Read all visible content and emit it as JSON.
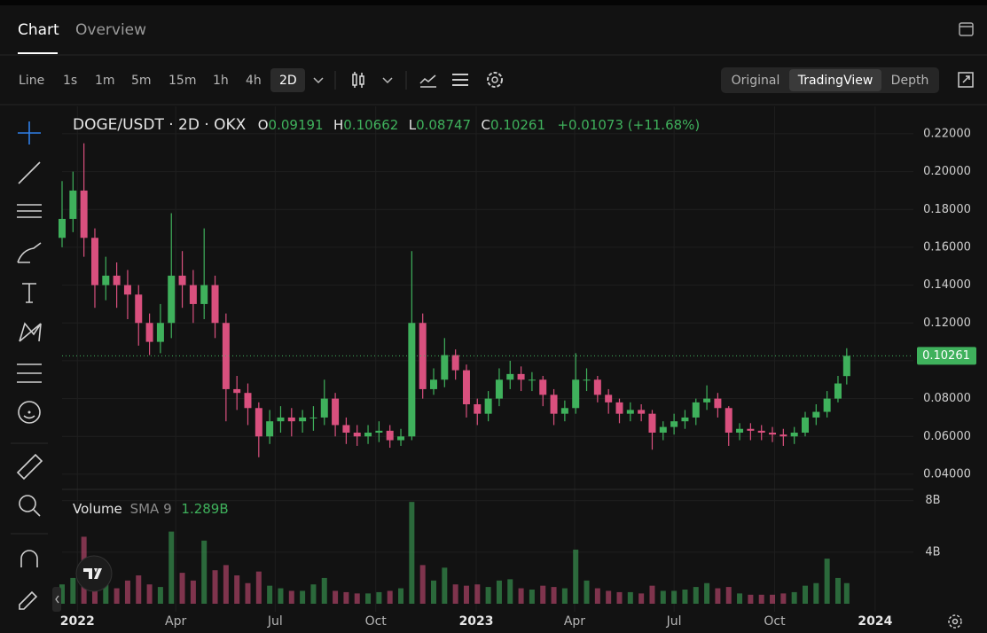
{
  "tabs": [
    "Chart",
    "Overview"
  ],
  "toolbar": {
    "intervals": [
      "Line",
      "1s",
      "1m",
      "5m",
      "15m",
      "1h",
      "4h",
      "2D"
    ],
    "views": [
      "Original",
      "TradingView",
      "Depth"
    ]
  },
  "chart_data": {
    "type": "candlestick",
    "title": "DOGE/USDT · 2D · OKX",
    "ohlc_labels": [
      "O",
      "H",
      "L",
      "C"
    ],
    "change": "+0.01073 (+11.68%)",
    "up_color": "#3fb15c",
    "down_color": "#d9507e",
    "grid": true,
    "x": [
      -14,
      -4,
      6,
      16,
      26,
      36,
      46,
      56,
      66,
      76,
      86,
      96,
      106,
      116,
      126,
      136,
      146,
      156,
      166,
      176,
      186,
      196,
      206,
      216,
      226,
      236,
      246,
      256,
      266,
      276,
      286,
      296,
      306,
      316,
      326,
      336,
      346,
      356,
      366,
      376,
      386,
      396,
      406,
      416,
      426,
      436,
      446,
      456,
      466,
      476,
      486,
      496,
      506,
      516,
      526,
      536,
      546,
      556,
      566,
      576,
      586,
      596,
      606,
      616,
      626,
      636,
      646,
      656,
      666,
      676,
      686,
      696,
      704
    ],
    "open": [
      0.165,
      0.175,
      0.19,
      0.165,
      0.14,
      0.145,
      0.14,
      0.135,
      0.12,
      0.11,
      0.12,
      0.145,
      0.14,
      0.13,
      0.14,
      0.12,
      0.085,
      0.083,
      0.075,
      0.06,
      0.068,
      0.07,
      0.068,
      0.07,
      0.07,
      0.08,
      0.066,
      0.062,
      0.06,
      0.062,
      0.063,
      0.058,
      0.06,
      0.12,
      0.085,
      0.09,
      0.103,
      0.095,
      0.077,
      0.072,
      0.08,
      0.09,
      0.093,
      0.09,
      0.09,
      0.082,
      0.072,
      0.075,
      0.09,
      0.09,
      0.082,
      0.078,
      0.072,
      0.074,
      0.072,
      0.062,
      0.065,
      0.068,
      0.07,
      0.078,
      0.08,
      0.075,
      0.062,
      0.064,
      0.063,
      0.062,
      0.061,
      0.06,
      0.062,
      0.07,
      0.073,
      0.08,
      0.09191
    ],
    "high": [
      0.195,
      0.2,
      0.215,
      0.17,
      0.155,
      0.152,
      0.148,
      0.14,
      0.125,
      0.13,
      0.178,
      0.158,
      0.148,
      0.17,
      0.145,
      0.125,
      0.092,
      0.088,
      0.078,
      0.074,
      0.076,
      0.075,
      0.074,
      0.076,
      0.09,
      0.083,
      0.07,
      0.066,
      0.066,
      0.068,
      0.066,
      0.064,
      0.158,
      0.125,
      0.096,
      0.112,
      0.106,
      0.098,
      0.08,
      0.084,
      0.096,
      0.1,
      0.097,
      0.094,
      0.092,
      0.085,
      0.079,
      0.104,
      0.096,
      0.092,
      0.085,
      0.08,
      0.078,
      0.077,
      0.074,
      0.068,
      0.072,
      0.074,
      0.08,
      0.087,
      0.083,
      0.076,
      0.067,
      0.067,
      0.066,
      0.065,
      0.064,
      0.065,
      0.073,
      0.077,
      0.084,
      0.092,
      0.10662
    ],
    "low": [
      0.16,
      0.168,
      0.155,
      0.128,
      0.132,
      0.128,
      0.122,
      0.108,
      0.103,
      0.104,
      0.112,
      0.128,
      0.12,
      0.122,
      0.112,
      0.068,
      0.074,
      0.066,
      0.049,
      0.056,
      0.062,
      0.06,
      0.062,
      0.063,
      0.066,
      0.06,
      0.056,
      0.055,
      0.056,
      0.057,
      0.054,
      0.055,
      0.058,
      0.08,
      0.082,
      0.086,
      0.09,
      0.07,
      0.066,
      0.068,
      0.076,
      0.085,
      0.084,
      0.084,
      0.076,
      0.066,
      0.068,
      0.072,
      0.084,
      0.078,
      0.072,
      0.067,
      0.068,
      0.068,
      0.053,
      0.058,
      0.061,
      0.064,
      0.066,
      0.074,
      0.07,
      0.055,
      0.058,
      0.058,
      0.058,
      0.057,
      0.055,
      0.056,
      0.06,
      0.066,
      0.07,
      0.078,
      0.08747
    ],
    "close": [
      0.175,
      0.19,
      0.165,
      0.14,
      0.145,
      0.14,
      0.135,
      0.12,
      0.11,
      0.12,
      0.145,
      0.14,
      0.13,
      0.14,
      0.12,
      0.085,
      0.083,
      0.075,
      0.06,
      0.068,
      0.07,
      0.068,
      0.07,
      0.07,
      0.08,
      0.066,
      0.062,
      0.06,
      0.062,
      0.063,
      0.058,
      0.06,
      0.12,
      0.085,
      0.09,
      0.103,
      0.095,
      0.077,
      0.072,
      0.08,
      0.09,
      0.093,
      0.09,
      0.09,
      0.082,
      0.072,
      0.075,
      0.09,
      0.09,
      0.082,
      0.078,
      0.072,
      0.074,
      0.072,
      0.062,
      0.065,
      0.068,
      0.07,
      0.078,
      0.08,
      0.075,
      0.062,
      0.064,
      0.063,
      0.062,
      0.061,
      0.06,
      0.062,
      0.07,
      0.073,
      0.08,
      0.088,
      0.10261
    ],
    "volume": [
      1.5,
      2.0,
      5.2,
      2.5,
      1.5,
      1.2,
      1.8,
      2.2,
      1.5,
      1.3,
      5.6,
      2.4,
      1.8,
      4.9,
      2.6,
      3.0,
      2.2,
      1.6,
      2.5,
      1.4,
      1.2,
      1.0,
      1.0,
      1.5,
      2.0,
      1.0,
      0.9,
      0.8,
      0.8,
      0.9,
      1.0,
      1.2,
      7.9,
      3.0,
      1.8,
      2.8,
      1.5,
      1.4,
      1.5,
      1.3,
      1.8,
      1.9,
      1.2,
      1.1,
      1.4,
      1.3,
      1.2,
      4.2,
      1.8,
      1.2,
      1.0,
      0.9,
      0.9,
      0.8,
      1.4,
      1.0,
      1.0,
      1.1,
      1.3,
      1.6,
      1.2,
      1.3,
      0.8,
      0.7,
      0.7,
      0.7,
      0.8,
      0.9,
      1.4,
      1.6,
      3.5,
      2.0,
      1.6
    ],
    "volume_legend": [
      "Volume",
      "SMA 9",
      "1.289B"
    ],
    "xlim": [
      -14,
      765
    ],
    "xticks": [
      {
        "value": 0,
        "label": "2022"
      },
      {
        "value": 90,
        "label": "Apr"
      },
      {
        "value": 181,
        "label": "Jul"
      },
      {
        "value": 273,
        "label": "Oct"
      },
      {
        "value": 365,
        "label": "2023"
      },
      {
        "value": 455,
        "label": "Apr"
      },
      {
        "value": 546,
        "label": "Jul"
      },
      {
        "value": 638,
        "label": "Oct"
      },
      {
        "value": 730,
        "label": "2024"
      }
    ],
    "ylim": [
      0.032,
      0.2345
    ],
    "yticks": [
      {
        "value": 0.04,
        "label": "0.04000"
      },
      {
        "value": 0.06,
        "label": "0.06000"
      },
      {
        "value": 0.08,
        "label": "0.08000"
      },
      {
        "value": 0.1,
        "label": "0.10000"
      },
      {
        "value": 0.12,
        "label": "0.12000"
      },
      {
        "value": 0.14,
        "label": "0.14000"
      },
      {
        "value": 0.16,
        "label": "0.16000"
      },
      {
        "value": 0.18,
        "label": "0.18000"
      },
      {
        "value": 0.2,
        "label": "0.20000"
      },
      {
        "value": 0.22,
        "label": "0.22000"
      }
    ],
    "volume_ylim": [
      0,
      8.6
    ],
    "volume_yticks": [
      {
        "value": 4,
        "label": "4B"
      },
      {
        "value": 8,
        "label": "8B"
      }
    ]
  }
}
